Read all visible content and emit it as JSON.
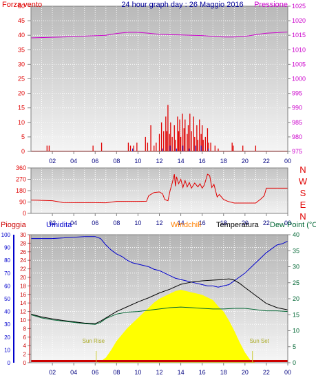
{
  "colors": {
    "wind": "#e00000",
    "pressure": "#cc00cc",
    "direction": "#e00000",
    "humidity": "#0000cc",
    "temperature": "#000000",
    "dewpoint": "#006633",
    "solar": "#ffff00",
    "rain": "#cc0000",
    "windchill": "#ff8000",
    "title": "#000099",
    "grid": "#ffffff",
    "frame": "#808080"
  },
  "labels": {
    "title": "24 hour graph day : 26 Maggio 2016",
    "wind": "Forza vento",
    "pressure": "Pressione",
    "rain": "Pioggia",
    "humidity": "Umidita",
    "windchill": "Windchill",
    "temperature": "Temperatura",
    "dewpoint": "Dew Point (°C",
    "sunrise": "Sun Rise",
    "sunset": "Sun Set",
    "compass": [
      "N",
      "W",
      "S",
      "E",
      "N"
    ]
  },
  "chart_data": [
    {
      "type": "bar",
      "title": "24 hour graph day : 26 Maggio 2016",
      "x_ticks": [
        "02",
        "04",
        "06",
        "08",
        "10",
        "12",
        "14",
        "16",
        "18",
        "20",
        "22",
        "00"
      ],
      "xlim_hours": [
        0,
        24
      ],
      "left_axis": {
        "label": "Forza vento",
        "ticks": [
          0,
          5,
          10,
          15,
          20,
          25,
          30,
          35,
          40,
          45,
          50
        ],
        "ylim": [
          0,
          50
        ]
      },
      "right_axis": {
        "label": "Pressione",
        "ticks": [
          975,
          980,
          985,
          990,
          995,
          1000,
          1005,
          1010,
          1015,
          1020,
          1025
        ],
        "ylim": [
          975,
          1025
        ]
      },
      "wind_gust_peaks": [
        [
          1.5,
          2
        ],
        [
          1.7,
          2
        ],
        [
          5.8,
          2
        ],
        [
          6.6,
          3
        ],
        [
          9.1,
          3
        ],
        [
          9.3,
          2
        ],
        [
          9.6,
          2
        ],
        [
          9.9,
          3
        ],
        [
          10.7,
          5
        ],
        [
          10.9,
          3
        ],
        [
          11.2,
          9
        ],
        [
          11.5,
          2
        ],
        [
          11.7,
          3
        ],
        [
          12.0,
          6
        ],
        [
          12.2,
          10
        ],
        [
          12.4,
          7
        ],
        [
          12.6,
          12
        ],
        [
          12.7,
          7
        ],
        [
          12.8,
          16
        ],
        [
          12.95,
          6
        ],
        [
          13.05,
          10
        ],
        [
          13.2,
          5
        ],
        [
          13.4,
          9
        ],
        [
          13.5,
          4
        ],
        [
          13.7,
          12
        ],
        [
          13.8,
          7
        ],
        [
          13.9,
          11
        ],
        [
          14.0,
          5
        ],
        [
          14.15,
          13
        ],
        [
          14.3,
          8
        ],
        [
          14.4,
          11
        ],
        [
          14.6,
          6
        ],
        [
          14.7,
          9
        ],
        [
          14.85,
          13
        ],
        [
          15.0,
          7
        ],
        [
          15.2,
          12
        ],
        [
          15.3,
          5
        ],
        [
          15.5,
          9
        ],
        [
          15.6,
          4
        ],
        [
          15.75,
          11
        ],
        [
          15.9,
          6
        ],
        [
          16.0,
          9
        ],
        [
          16.1,
          4
        ],
        [
          16.3,
          5
        ],
        [
          16.5,
          8
        ],
        [
          16.6,
          3
        ],
        [
          16.8,
          3
        ],
        [
          17.2,
          2
        ],
        [
          17.5,
          1
        ],
        [
          18.8,
          3
        ],
        [
          18.9,
          2
        ],
        [
          19.8,
          2
        ],
        [
          21.0,
          2
        ]
      ],
      "wind_average": [
        [
          0,
          0
        ],
        [
          24,
          0
        ]
      ],
      "wind_average_spikes": [
        [
          9.5,
          1
        ],
        [
          12.3,
          1
        ],
        [
          13.0,
          2
        ],
        [
          13.6,
          1
        ],
        [
          14.2,
          2
        ],
        [
          14.8,
          1
        ],
        [
          15.4,
          2
        ],
        [
          15.9,
          2
        ],
        [
          16.6,
          1
        ]
      ],
      "pressure": [
        [
          0,
          1014.1
        ],
        [
          2,
          1014.3
        ],
        [
          3,
          1014.4
        ],
        [
          5,
          1014.7
        ],
        [
          7,
          1015.0
        ],
        [
          8,
          1015.6
        ],
        [
          9,
          1016.0
        ],
        [
          10,
          1016.0
        ],
        [
          11,
          1015.7
        ],
        [
          12,
          1015.3
        ],
        [
          13,
          1015.2
        ],
        [
          14,
          1015.1
        ],
        [
          15,
          1015.0
        ],
        [
          16,
          1014.9
        ],
        [
          17,
          1014.6
        ],
        [
          18,
          1014.4
        ],
        [
          19,
          1014.4
        ],
        [
          20,
          1014.6
        ],
        [
          21,
          1015.2
        ],
        [
          22,
          1015.7
        ],
        [
          23,
          1015.9
        ],
        [
          24,
          1016.1
        ]
      ]
    },
    {
      "type": "line",
      "x_ticks": [
        "02",
        "04",
        "06",
        "08",
        "10",
        "12",
        "14",
        "16",
        "18",
        "20",
        "22",
        "00"
      ],
      "xlim_hours": [
        0,
        24
      ],
      "left_axis": {
        "label": "",
        "ticks": [
          0,
          90,
          180,
          270,
          360
        ],
        "ylim": [
          0,
          360
        ]
      },
      "right_axis": {
        "label": "",
        "ticks": [
          "N",
          "W",
          "S",
          "E",
          "N"
        ]
      },
      "wind_direction": [
        [
          0,
          105
        ],
        [
          0.6,
          104
        ],
        [
          1.0,
          103
        ],
        [
          2.0,
          100
        ],
        [
          3.0,
          86
        ],
        [
          4.0,
          85
        ],
        [
          5.0,
          85
        ],
        [
          6.0,
          85
        ],
        [
          7.0,
          84
        ],
        [
          8.0,
          95
        ],
        [
          9.0,
          95
        ],
        [
          10.0,
          95
        ],
        [
          10.8,
          96
        ],
        [
          11.0,
          140
        ],
        [
          11.5,
          165
        ],
        [
          12.0,
          170
        ],
        [
          12.3,
          155
        ],
        [
          12.5,
          110
        ],
        [
          12.8,
          100
        ],
        [
          13.0,
          180
        ],
        [
          13.2,
          240
        ],
        [
          13.4,
          310
        ],
        [
          13.5,
          215
        ],
        [
          13.6,
          290
        ],
        [
          13.8,
          235
        ],
        [
          14.0,
          270
        ],
        [
          14.2,
          205
        ],
        [
          14.4,
          260
        ],
        [
          14.6,
          210
        ],
        [
          14.8,
          245
        ],
        [
          15.0,
          200
        ],
        [
          15.3,
          240
        ],
        [
          15.6,
          210
        ],
        [
          15.8,
          235
        ],
        [
          16.0,
          200
        ],
        [
          16.2,
          225
        ],
        [
          16.5,
          310
        ],
        [
          16.7,
          300
        ],
        [
          16.9,
          205
        ],
        [
          17.1,
          230
        ],
        [
          17.4,
          130
        ],
        [
          17.6,
          150
        ],
        [
          18.0,
          110
        ],
        [
          18.4,
          95
        ],
        [
          19.0,
          82
        ],
        [
          20.0,
          82
        ],
        [
          21.0,
          82
        ],
        [
          21.5,
          115
        ],
        [
          21.8,
          140
        ],
        [
          22.0,
          200
        ],
        [
          24,
          200
        ]
      ]
    },
    {
      "type": "line",
      "x_ticks": [
        "02",
        "04",
        "06",
        "08",
        "10",
        "12",
        "14",
        "16",
        "18",
        "20",
        "22",
        "00"
      ],
      "xlim_hours": [
        0,
        24
      ],
      "left_axis": {
        "label": "Pioggia / Umidita",
        "ticks": [
          0,
          10,
          20,
          30,
          40,
          50,
          60,
          70,
          80,
          90,
          100
        ],
        "ylim": [
          0,
          100
        ]
      },
      "inner_left_axis": {
        "ticks": [
          0,
          2,
          4,
          6,
          8,
          10,
          12,
          14,
          16,
          18,
          20,
          22,
          24,
          26,
          28,
          30
        ],
        "ylim": [
          0,
          30
        ]
      },
      "right_axis": {
        "label": "Dew Point (°C",
        "ticks": [
          0,
          5,
          10,
          15,
          20,
          25,
          30,
          35,
          40
        ],
        "ylim": [
          0,
          40
        ]
      },
      "humidity": [
        [
          0,
          97
        ],
        [
          1,
          97
        ],
        [
          2,
          97
        ],
        [
          3,
          97.5
        ],
        [
          4,
          98
        ],
        [
          5,
          98.5
        ],
        [
          6,
          98.5
        ],
        [
          6.5,
          97
        ],
        [
          7,
          92
        ],
        [
          7.5,
          88
        ],
        [
          8,
          85
        ],
        [
          8.5,
          83
        ],
        [
          9,
          80
        ],
        [
          9.5,
          78
        ],
        [
          10,
          77
        ],
        [
          10.5,
          76
        ],
        [
          11,
          75
        ],
        [
          11.5,
          73
        ],
        [
          12,
          72
        ],
        [
          12.5,
          70
        ],
        [
          13,
          68
        ],
        [
          13.5,
          66
        ],
        [
          14,
          65
        ],
        [
          14.5,
          64
        ],
        [
          15,
          63
        ],
        [
          15.5,
          62
        ],
        [
          16,
          61
        ],
        [
          16.5,
          60
        ],
        [
          17,
          60
        ],
        [
          17.5,
          59
        ],
        [
          18,
          60
        ],
        [
          18.5,
          61
        ],
        [
          19,
          64
        ],
        [
          19.5,
          67
        ],
        [
          20,
          70
        ],
        [
          20.5,
          74
        ],
        [
          21,
          78
        ],
        [
          21.5,
          82
        ],
        [
          22,
          86
        ],
        [
          22.5,
          89
        ],
        [
          23,
          92
        ],
        [
          23.5,
          93
        ],
        [
          24,
          95
        ]
      ],
      "temperature": [
        [
          0,
          15.2
        ],
        [
          1,
          14.3
        ],
        [
          2,
          13.7
        ],
        [
          3,
          13.2
        ],
        [
          4,
          12.8
        ],
        [
          5,
          12.4
        ],
        [
          6,
          12.2
        ],
        [
          6.5,
          13
        ],
        [
          7,
          14
        ],
        [
          8,
          16
        ],
        [
          9,
          17.5
        ],
        [
          10,
          19
        ],
        [
          11,
          20.3
        ],
        [
          12,
          21.8
        ],
        [
          13,
          23
        ],
        [
          14,
          24.5
        ],
        [
          15,
          25.2
        ],
        [
          16,
          25.6
        ],
        [
          17,
          25.8
        ],
        [
          18,
          26
        ],
        [
          18.5,
          26.2
        ],
        [
          19,
          25.8
        ],
        [
          19.5,
          24.8
        ],
        [
          20,
          23.5
        ],
        [
          21,
          21
        ],
        [
          22,
          18.5
        ],
        [
          23,
          17.2
        ],
        [
          24,
          16.5
        ]
      ],
      "dew_point": [
        [
          0,
          15.0
        ],
        [
          1,
          14.0
        ],
        [
          2,
          13.4
        ],
        [
          3,
          13.0
        ],
        [
          4,
          12.6
        ],
        [
          5,
          12.2
        ],
        [
          6,
          12.0
        ],
        [
          6.5,
          12.6
        ],
        [
          7,
          13.8
        ],
        [
          8,
          15.2
        ],
        [
          9,
          15.8
        ],
        [
          10,
          16.0
        ],
        [
          11,
          16.4
        ],
        [
          12,
          16.8
        ],
        [
          13,
          17.2
        ],
        [
          14,
          17.4
        ],
        [
          15,
          17.2
        ],
        [
          16,
          17.0
        ],
        [
          17,
          16.8
        ],
        [
          18,
          16.8
        ],
        [
          19,
          17.0
        ],
        [
          20,
          17.0
        ],
        [
          21,
          16.6
        ],
        [
          22,
          16.2
        ],
        [
          23,
          16.2
        ],
        [
          24,
          16.0
        ]
      ],
      "solar_radiation_pct": [
        [
          0,
          0
        ],
        [
          6.2,
          0
        ],
        [
          6.5,
          1
        ],
        [
          7.0,
          4
        ],
        [
          7.5,
          10
        ],
        [
          8,
          17
        ],
        [
          8.5,
          22
        ],
        [
          9,
          27
        ],
        [
          9.5,
          31
        ],
        [
          10,
          35
        ],
        [
          10.5,
          39
        ],
        [
          11,
          43
        ],
        [
          11.5,
          47
        ],
        [
          12,
          50
        ],
        [
          12.5,
          52
        ],
        [
          13,
          54
        ],
        [
          13.5,
          56
        ],
        [
          14,
          57
        ],
        [
          14.5,
          56
        ],
        [
          15,
          55
        ],
        [
          15.5,
          54
        ],
        [
          16,
          53
        ],
        [
          16.5,
          51
        ],
        [
          17,
          49
        ],
        [
          17.5,
          44
        ],
        [
          18,
          40
        ],
        [
          18.5,
          33
        ],
        [
          19,
          25
        ],
        [
          19.5,
          16
        ],
        [
          20,
          8
        ],
        [
          20.5,
          2
        ],
        [
          21,
          0
        ],
        [
          24,
          0
        ]
      ],
      "sunrise_hour": 6.1,
      "sunset_hour": 20.7,
      "rain": [
        [
          0,
          0
        ],
        [
          24,
          0
        ]
      ]
    }
  ]
}
